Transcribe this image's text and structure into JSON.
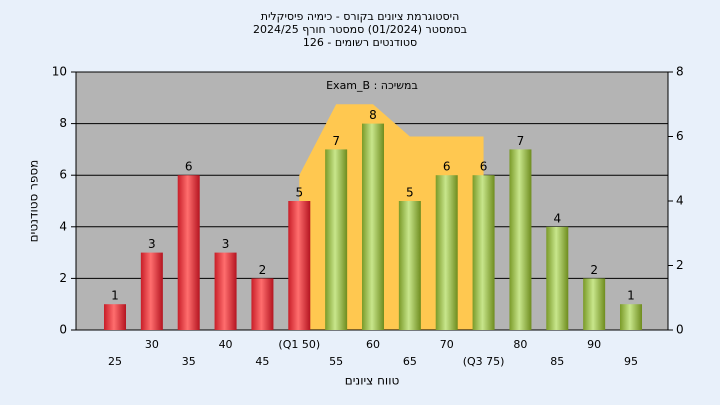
{
  "chart_data": {
    "type": "bar",
    "title_lines": [
      "היסטוגרמת ציונים בקורס - כימיה פיסיקלית",
      "בסמסטר  (01/2024)  סמסטר חורף 2024/25",
      "סטודנטים רשומים - 126"
    ],
    "annotation": "Exam_B : במשיכה",
    "x_label": "טווח ציונים",
    "y_label": "מספר סטודנטים",
    "categories": [
      "25",
      "30",
      "35",
      "40",
      "45",
      "(Q1 50)",
      "55",
      "60",
      "65",
      "70",
      "(Q3 75)",
      "80",
      "85",
      "90",
      "95"
    ],
    "values": [
      1,
      3,
      6,
      3,
      2,
      5,
      7,
      8,
      5,
      6,
      6,
      7,
      4,
      2,
      1
    ],
    "colors": [
      "red",
      "red",
      "red",
      "red",
      "red",
      "red",
      "green",
      "green",
      "green",
      "green",
      "green",
      "green",
      "green",
      "green",
      "green"
    ],
    "overlay": {
      "axis": "y2",
      "color": "#ffc850",
      "x": [
        5,
        6,
        7,
        8,
        10
      ],
      "values": [
        4.8,
        7,
        7,
        6,
        6
      ]
    },
    "ylim": [
      0,
      10
    ],
    "yticks": [
      0,
      2,
      4,
      6,
      8,
      10
    ],
    "y2lim": [
      0,
      8
    ],
    "y2ticks": [
      0,
      2,
      4,
      6,
      8
    ],
    "grid": true
  }
}
